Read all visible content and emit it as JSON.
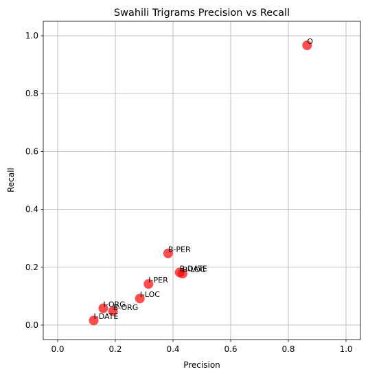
{
  "chart_data": {
    "type": "scatter",
    "title": "Swahili Trigrams Precision vs Recall",
    "xlabel": "Precision",
    "ylabel": "Recall",
    "xlim": [
      -0.05,
      1.05
    ],
    "ylim": [
      -0.05,
      1.05
    ],
    "xticks": [
      0.0,
      0.2,
      0.4,
      0.6,
      0.8,
      1.0
    ],
    "yticks": [
      0.0,
      0.2,
      0.4,
      0.6,
      0.8,
      1.0
    ],
    "xtick_labels": [
      "0.0",
      "0.2",
      "0.4",
      "0.6",
      "0.8",
      "1.0"
    ],
    "ytick_labels": [
      "0.0",
      "0.2",
      "0.4",
      "0.6",
      "0.8",
      "1.0"
    ],
    "grid": true,
    "marker_color": "#ff0000",
    "marker_alpha": 0.7,
    "points": [
      {
        "label": "O",
        "x": 0.865,
        "y": 0.967
      },
      {
        "label": "B-PER",
        "x": 0.383,
        "y": 0.248
      },
      {
        "label": "B-DATE",
        "x": 0.423,
        "y": 0.182
      },
      {
        "label": "B-LOC",
        "x": 0.433,
        "y": 0.178
      },
      {
        "label": "I-PER",
        "x": 0.315,
        "y": 0.142
      },
      {
        "label": "I-LOC",
        "x": 0.285,
        "y": 0.092
      },
      {
        "label": "I-ORG",
        "x": 0.158,
        "y": 0.058
      },
      {
        "label": "B-ORG",
        "x": 0.192,
        "y": 0.048
      },
      {
        "label": "I-DATE",
        "x": 0.125,
        "y": 0.016
      }
    ]
  }
}
